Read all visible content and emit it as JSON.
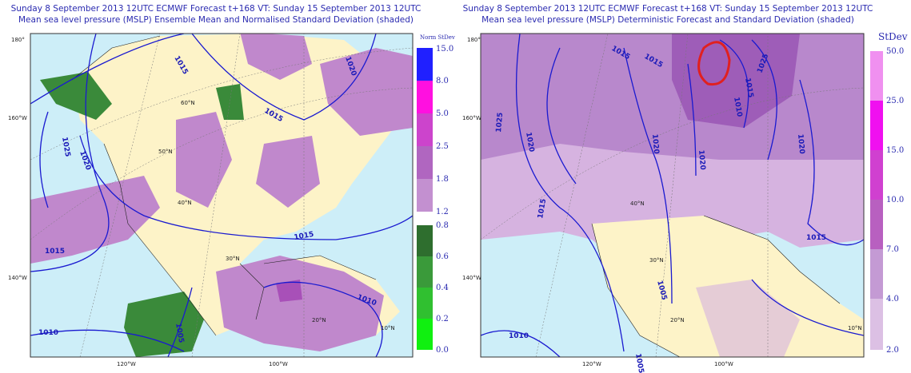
{
  "panels": [
    {
      "title_line1": "Sunday 8 September 2013 12UTC ECMWF Forecast t+168  VT: Sunday 15 September 2013 12UTC",
      "title_line2": "Mean sea level pressure (MSLP) Ensemble Mean and Normalised Standard Deviation (shaded)",
      "colorbar": {
        "title": "Norm StDev",
        "labels": [
          "15.0",
          "8.0",
          "5.0",
          "2.5",
          "1.8",
          "1.2",
          "0.8",
          "0.6",
          "0.4",
          "0.2",
          "0.0"
        ]
      },
      "edge_labels": [
        "180°",
        "160°W",
        "140°W",
        "120°W",
        "100°W"
      ],
      "grid_labels": [
        "60°N",
        "50°N",
        "40°N",
        "30°N",
        "20°N",
        "10°N"
      ],
      "contour_labels": [
        "1015",
        "1020",
        "1015",
        "1025",
        "1020",
        "1015",
        "1015",
        "1010",
        "1010",
        "1005"
      ]
    },
    {
      "title_line1": "Sunday 8 September 2013 12UTC ECMWF Forecast t+168  VT: Sunday 15 September 2013 12UTC",
      "title_line2": "Mean sea level pressure (MSLP) Deterministic Forecast and Standard Deviation (shaded)",
      "colorbar": {
        "title": "StDev",
        "labels": [
          "50.0",
          "25.0",
          "15.0",
          "10.0",
          "7.0",
          "4.0",
          "2.0"
        ]
      },
      "edge_labels": [
        "180°",
        "160°W",
        "140°W",
        "120°W",
        "100°W"
      ],
      "grid_labels": [
        "40°N",
        "30°N",
        "20°N",
        "10°N"
      ],
      "contour_labels": [
        "1015",
        "1015",
        "1010",
        "1015",
        "1025",
        "1025",
        "1020",
        "1020",
        "1020",
        "1020",
        "1015",
        "1015",
        "1005",
        "1010",
        "1005"
      ]
    }
  ]
}
